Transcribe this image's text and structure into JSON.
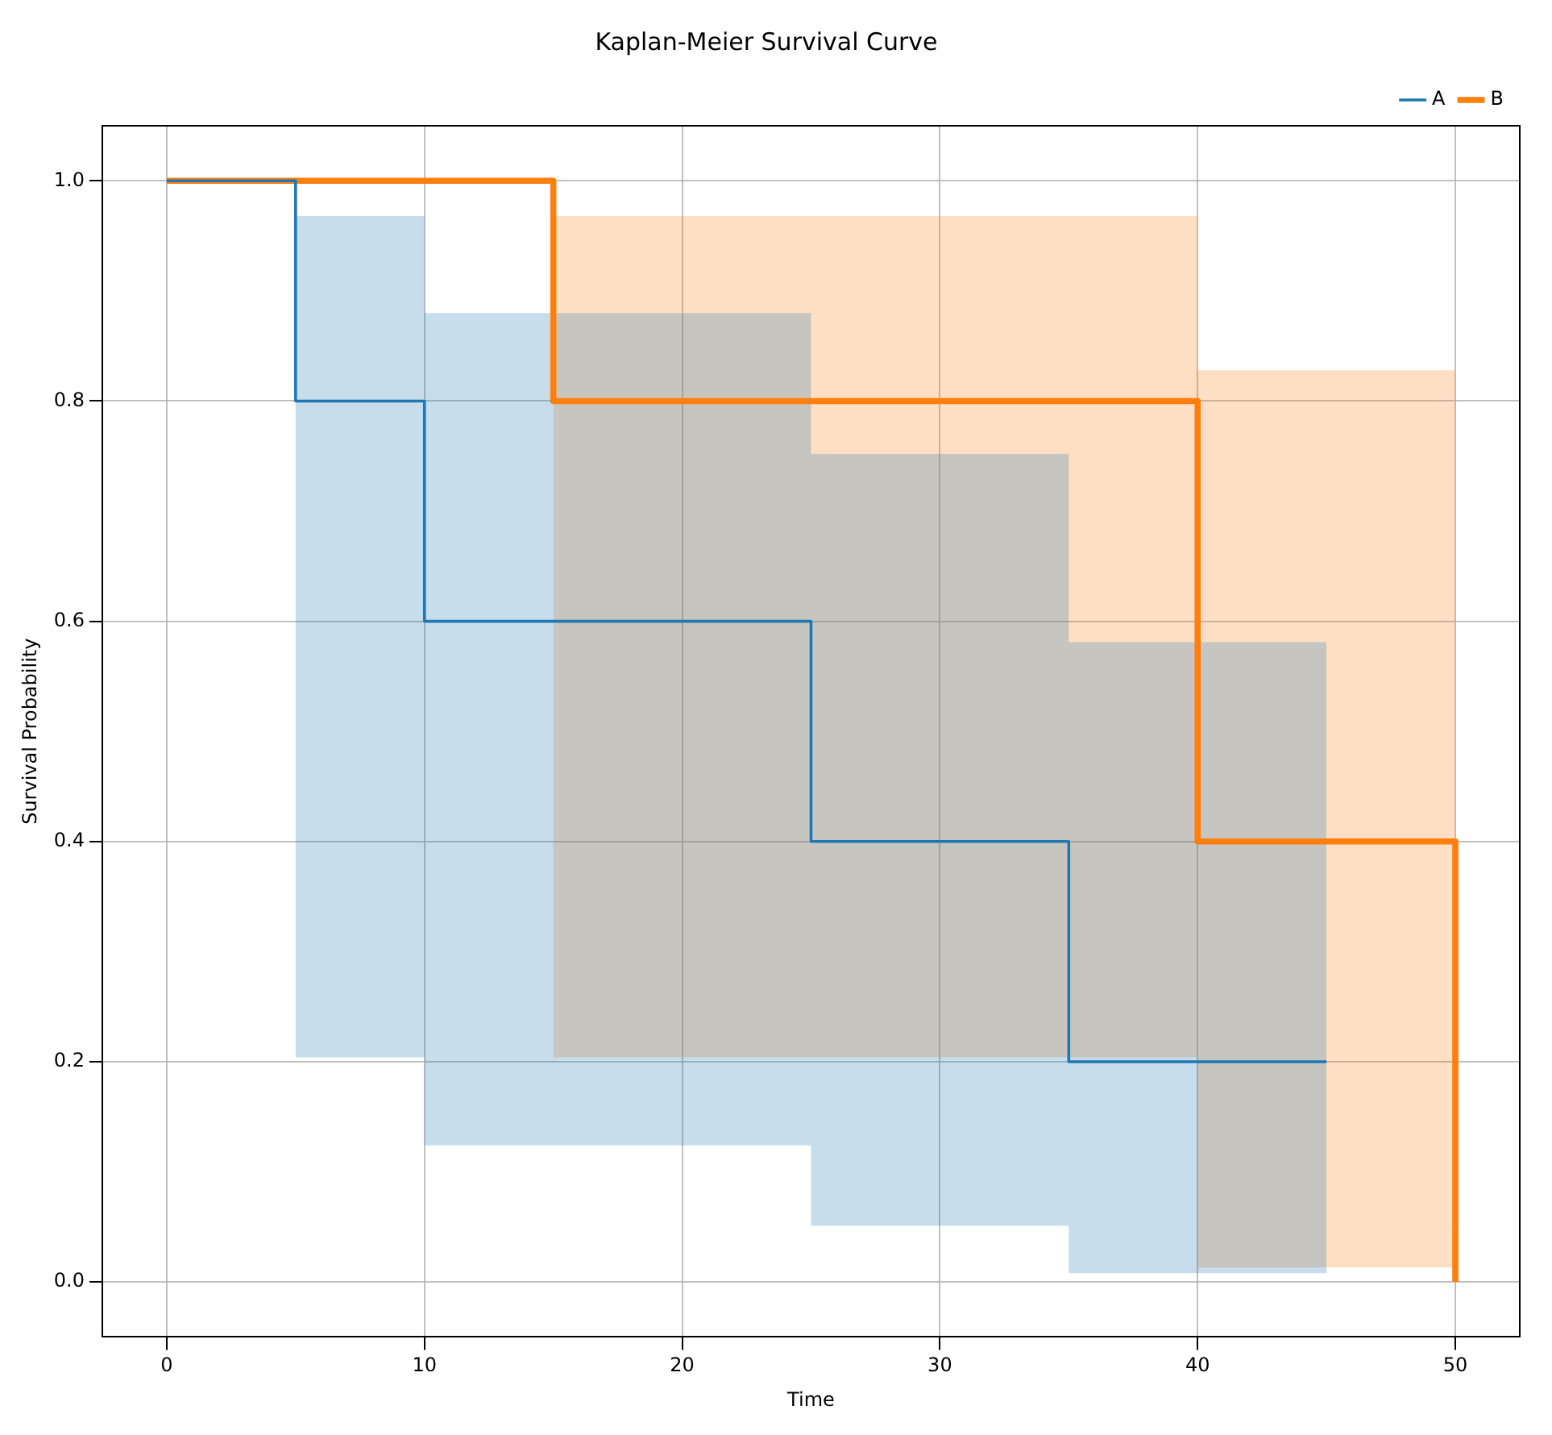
{
  "chart_data": {
    "type": "step",
    "title": "Kaplan-Meier Survival Curve",
    "xlabel": "Time",
    "ylabel": "Survival Probability",
    "series": [
      {
        "name": "A",
        "color": "#1f77b4",
        "x": [
          0,
          5,
          10,
          25,
          35,
          45
        ],
        "values": [
          1,
          0.8,
          0.6,
          0.4,
          0.2,
          0.2
        ],
        "lower": [
          1,
          0.204,
          0.124,
          0.051,
          0.008,
          0.008
        ],
        "upper": [
          1,
          0.968,
          0.88,
          0.752,
          0.581,
          0.581
        ]
      },
      {
        "name": "B",
        "color": "#ff7f0e",
        "x": [
          0,
          15,
          40,
          50
        ],
        "values": [
          1,
          0.8,
          0.4,
          0
        ],
        "lower": [
          1,
          0.204,
          0.013,
          0.013
        ],
        "upper": [
          1,
          0.968,
          0.828,
          0.828
        ]
      }
    ],
    "xlim": [
      -2.5,
      52.5
    ],
    "ylim": [
      -0.05,
      1.05
    ],
    "xticks": [
      0,
      10,
      20,
      30,
      40,
      50
    ],
    "yticks": [
      {
        "value": 0,
        "label": "0.0"
      },
      {
        "value": 0.2,
        "label": "0.2"
      },
      {
        "value": 0.4,
        "label": "0.4"
      },
      {
        "value": 0.6,
        "label": "0.6"
      },
      {
        "value": 0.8,
        "label": "0.8"
      },
      {
        "value": 1,
        "label": "1.0"
      }
    ],
    "grid": true,
    "legend": "top right",
    "line_style": "solid",
    "marker": "none"
  }
}
